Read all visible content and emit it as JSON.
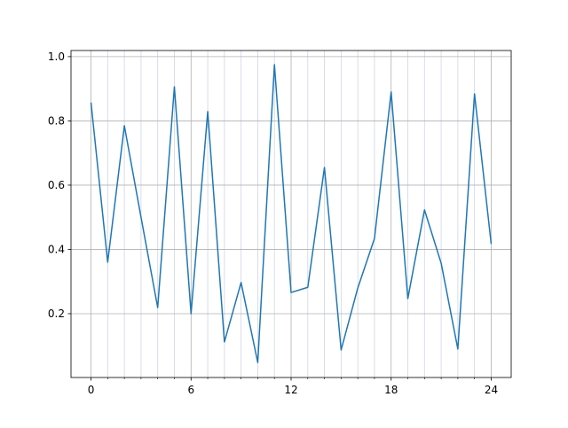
{
  "chart_data": {
    "type": "line",
    "x": [
      0,
      1,
      2,
      3,
      4,
      5,
      6,
      7,
      8,
      9,
      10,
      11,
      12,
      13,
      14,
      15,
      16,
      17,
      18,
      19,
      20,
      21,
      22,
      23,
      24
    ],
    "series": [
      {
        "color": "#1f77b4",
        "values": [
          0.857,
          0.36,
          0.785,
          0.5,
          0.219,
          0.906,
          0.2,
          0.829,
          0.112,
          0.297,
          0.048,
          0.975,
          0.266,
          0.282,
          0.655,
          0.087,
          0.28,
          0.434,
          0.89,
          0.247,
          0.523,
          0.357,
          0.09,
          0.884,
          0.417
        ]
      }
    ],
    "xlim": [
      -1.2,
      25.2
    ],
    "xticks": [
      0,
      6,
      12,
      18,
      24
    ],
    "xminorticks": [
      1,
      2,
      3,
      4,
      5,
      7,
      8,
      9,
      10,
      11,
      13,
      14,
      15,
      16,
      17,
      19,
      20,
      21,
      22,
      23
    ],
    "ylim": [
      0.0014,
      1.019
    ],
    "yticks": [
      {
        "value": 0.2,
        "label": "0.2"
      },
      {
        "value": 0.4,
        "label": "0.4"
      },
      {
        "value": 0.6,
        "label": "0.6"
      },
      {
        "value": 0.8,
        "label": "0.8"
      },
      {
        "value": 1.0,
        "label": "1.0"
      }
    ],
    "grid": true,
    "minor_grid_color": "#d0d4e8",
    "grid_color": "#b0b0b0"
  }
}
